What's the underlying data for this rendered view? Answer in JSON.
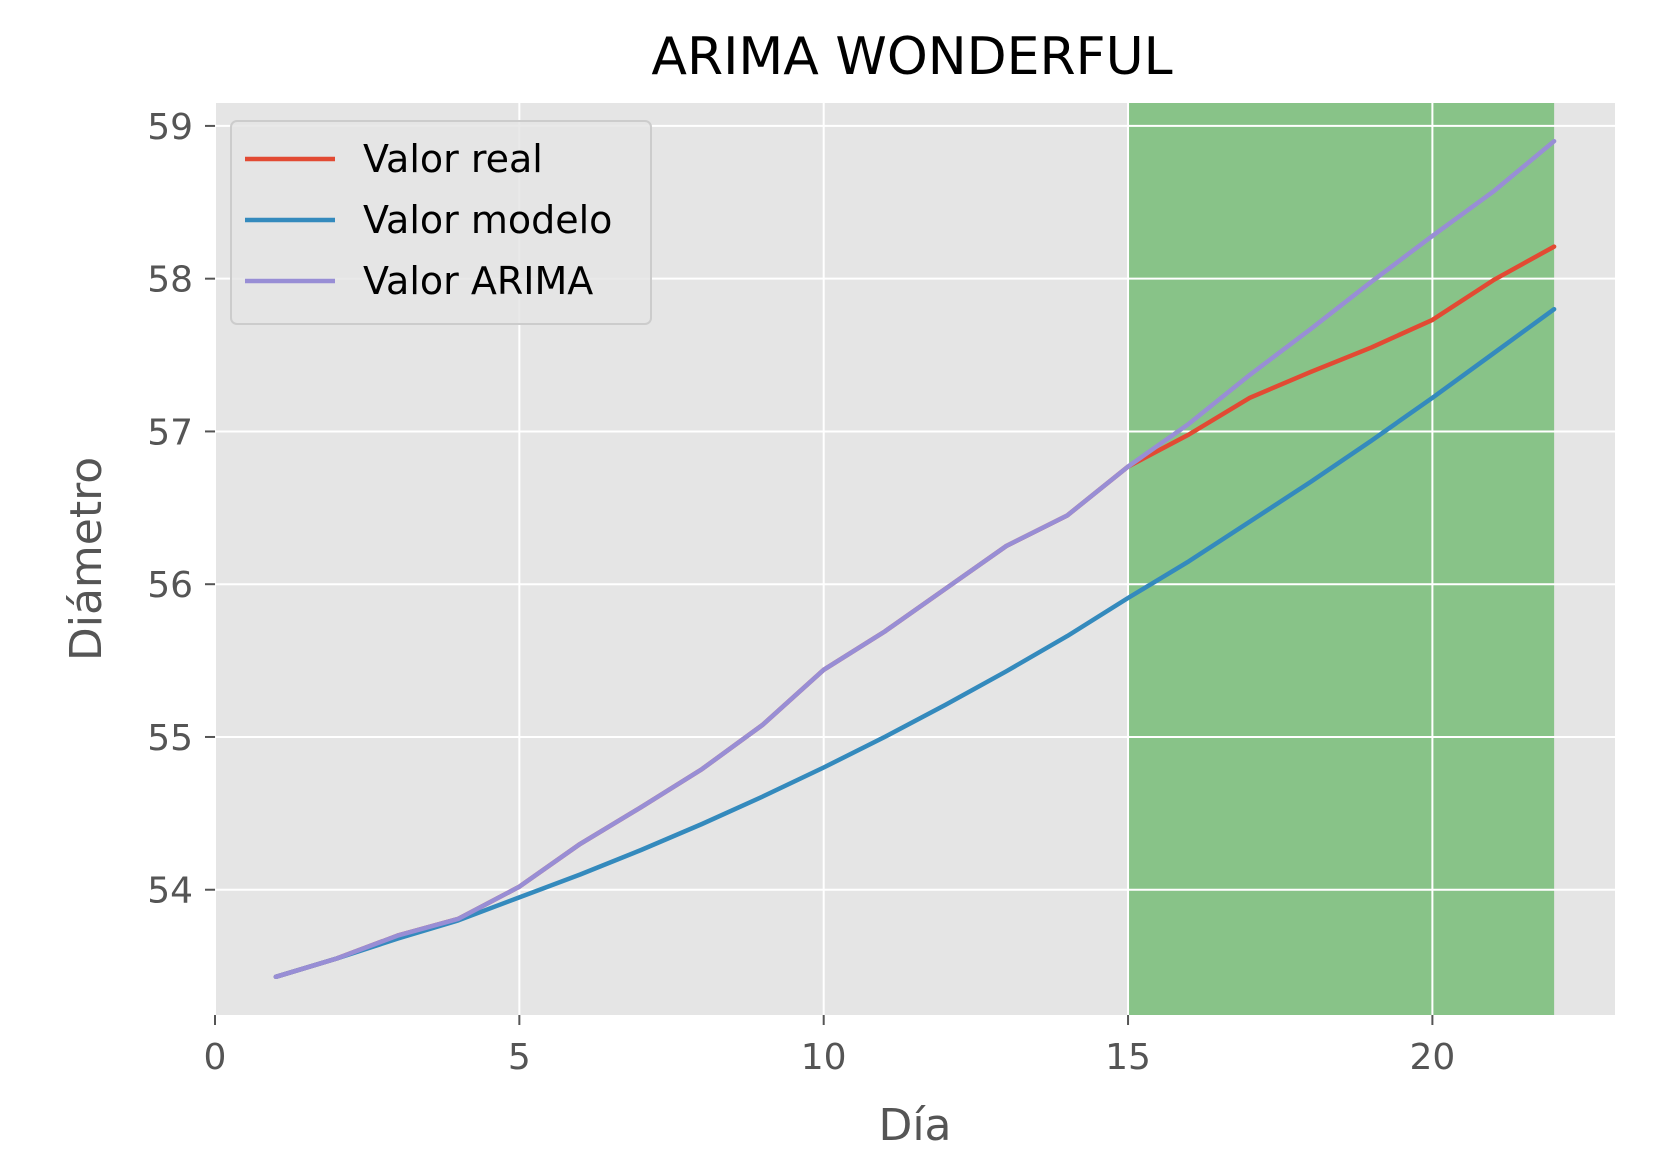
{
  "chart_data": {
    "type": "line",
    "title": "ARIMA WONDERFUL",
    "xlabel": "Día",
    "ylabel": "Diámetro",
    "xlim": [
      0,
      23
    ],
    "ylim": [
      53.18,
      59.15
    ],
    "xticks": [
      0,
      5,
      10,
      15,
      20
    ],
    "yticks": [
      54,
      55,
      56,
      57,
      58,
      59
    ],
    "grid": true,
    "legend_position": "top-left",
    "background": "#e5e5e5",
    "highlight_region": {
      "x_start": 15,
      "x_end": 22,
      "color": "#88c388"
    },
    "series": [
      {
        "name": "Valor real",
        "color": "#e24a33",
        "x": [
          1,
          2,
          3,
          4,
          5,
          6,
          7,
          8,
          9,
          10,
          11,
          12,
          13,
          14,
          15,
          16,
          17,
          18,
          19,
          20,
          21,
          22
        ],
        "y": [
          53.43,
          53.55,
          53.7,
          53.81,
          54.02,
          54.3,
          54.54,
          54.79,
          55.08,
          55.44,
          55.69,
          55.97,
          56.25,
          56.45,
          56.77,
          56.98,
          57.22,
          57.39,
          57.55,
          57.73,
          57.99,
          58.21
        ]
      },
      {
        "name": "Valor modelo",
        "color": "#348abd",
        "x": [
          1,
          2,
          3,
          4,
          5,
          6,
          7,
          8,
          9,
          10,
          11,
          12,
          13,
          14,
          15,
          16,
          17,
          18,
          19,
          20,
          21,
          22
        ],
        "y": [
          53.43,
          53.55,
          53.68,
          53.8,
          53.95,
          54.1,
          54.26,
          54.43,
          54.61,
          54.8,
          55.0,
          55.21,
          55.43,
          55.66,
          55.91,
          56.15,
          56.41,
          56.67,
          56.94,
          57.22,
          57.51,
          57.8
        ]
      },
      {
        "name": "Valor ARIMA",
        "color": "#988ed5",
        "x": [
          1,
          2,
          3,
          4,
          5,
          6,
          7,
          8,
          9,
          10,
          11,
          12,
          13,
          14,
          15,
          16,
          17,
          18,
          19,
          20,
          21,
          22
        ],
        "y": [
          53.43,
          53.55,
          53.7,
          53.81,
          54.02,
          54.3,
          54.54,
          54.79,
          55.08,
          55.44,
          55.69,
          55.97,
          56.25,
          56.45,
          56.77,
          57.05,
          57.37,
          57.67,
          57.98,
          58.28,
          58.57,
          58.9
        ]
      }
    ]
  }
}
